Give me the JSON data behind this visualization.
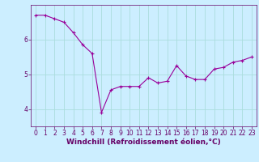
{
  "x": [
    0,
    1,
    2,
    3,
    4,
    5,
    6,
    7,
    8,
    9,
    10,
    11,
    12,
    13,
    14,
    15,
    16,
    17,
    18,
    19,
    20,
    21,
    22,
    23
  ],
  "y": [
    6.7,
    6.7,
    6.6,
    6.5,
    6.2,
    5.85,
    5.6,
    3.9,
    4.55,
    4.65,
    4.65,
    4.65,
    4.9,
    4.75,
    4.8,
    5.25,
    4.95,
    4.85,
    4.85,
    5.15,
    5.2,
    5.35,
    5.4,
    5.5
  ],
  "line_color": "#990099",
  "marker": "+",
  "markersize": 3,
  "linewidth": 0.8,
  "xlabel": "Windchill (Refroidissement éolien,°C)",
  "background_color": "#cceeff",
  "grid_color": "#aadddd",
  "tick_color": "#660066",
  "ylim": [
    3.5,
    7.0
  ],
  "xlim": [
    -0.5,
    23.5
  ],
  "yticks": [
    4,
    5,
    6
  ],
  "xticks": [
    0,
    1,
    2,
    3,
    4,
    5,
    6,
    7,
    8,
    9,
    10,
    11,
    12,
    13,
    14,
    15,
    16,
    17,
    18,
    19,
    20,
    21,
    22,
    23
  ],
  "tick_fontsize": 5.5,
  "xlabel_fontsize": 6.5,
  "fig_bg_color": "#cceeff"
}
